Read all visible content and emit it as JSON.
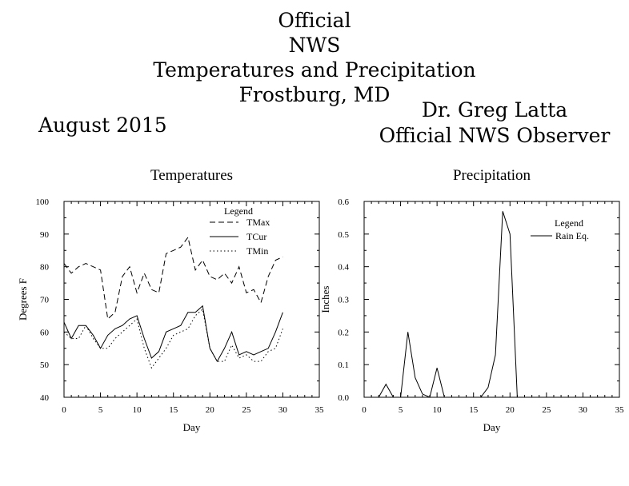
{
  "header": {
    "title_lines": [
      "Official",
      "NWS",
      "Temperatures and Precipitation",
      "Frostburg, MD"
    ],
    "date": "August 2015",
    "observer_name": "Dr. Greg Latta",
    "observer_title": "Official NWS Observer"
  },
  "chart_data": [
    {
      "type": "line",
      "title": "Temperatures",
      "xlabel": "Day",
      "ylabel": "Degrees F",
      "xlim": [
        0,
        35
      ],
      "ylim": [
        40,
        100
      ],
      "x_ticks": [
        0,
        5,
        10,
        15,
        20,
        25,
        30,
        35
      ],
      "y_ticks": [
        40,
        50,
        60,
        70,
        80,
        90,
        100
      ],
      "legend_title": "Legend",
      "legend_position": "top-right",
      "grid": false,
      "x": [
        0,
        1,
        2,
        3,
        4,
        5,
        6,
        7,
        8,
        9,
        10,
        11,
        12,
        13,
        14,
        15,
        16,
        17,
        18,
        19,
        20,
        21,
        22,
        23,
        24,
        25,
        26,
        27,
        28,
        29,
        30
      ],
      "series": [
        {
          "name": "TMax",
          "style": "dashed",
          "values": [
            81,
            78,
            80,
            81,
            80,
            79,
            64,
            66,
            77,
            80,
            72,
            78,
            73,
            72,
            84,
            85,
            86,
            89,
            79,
            82,
            77,
            76,
            78,
            75,
            80,
            72,
            73,
            69,
            77,
            82,
            83
          ]
        },
        {
          "name": "TCur",
          "style": "solid",
          "values": [
            63,
            58,
            62,
            62,
            59,
            55,
            59,
            61,
            62,
            64,
            65,
            58,
            52,
            54,
            60,
            61,
            62,
            66,
            66,
            68,
            55,
            51,
            55,
            60,
            53,
            54,
            53,
            54,
            55,
            60,
            66
          ]
        },
        {
          "name": "TMin",
          "style": "dotted",
          "values": [
            60,
            58,
            58,
            62,
            58,
            55,
            55,
            58,
            60,
            62,
            64,
            55,
            49,
            52,
            55,
            59,
            60,
            61,
            65,
            67,
            55,
            51,
            51,
            56,
            52,
            53,
            51,
            51,
            54,
            55,
            61
          ]
        }
      ]
    },
    {
      "type": "line",
      "title": "Precipitation",
      "xlabel": "Day",
      "ylabel": "Inches",
      "xlim": [
        0,
        35
      ],
      "ylim": [
        0,
        0.6
      ],
      "x_ticks": [
        0,
        5,
        10,
        15,
        20,
        25,
        30,
        35
      ],
      "y_ticks": [
        0.0,
        0.1,
        0.2,
        0.3,
        0.4,
        0.5,
        0.6
      ],
      "legend_title": "Legend",
      "legend_position": "top-right",
      "grid": false,
      "x": [
        0,
        1,
        2,
        3,
        4,
        5,
        6,
        7,
        8,
        9,
        10,
        11,
        12,
        13,
        14,
        15,
        16,
        17,
        18,
        19,
        20,
        21,
        22,
        23,
        24,
        25,
        26,
        27,
        28,
        29,
        30
      ],
      "series": [
        {
          "name": "Rain Eq.",
          "style": "solid",
          "values": [
            0,
            0,
            0,
            0.04,
            0,
            0,
            0.2,
            0.06,
            0.01,
            0,
            0.09,
            0,
            0,
            0,
            0,
            0,
            0,
            0.03,
            0.13,
            0.57,
            0.5,
            0,
            0,
            0,
            0,
            0,
            0,
            0,
            0,
            0,
            0
          ]
        }
      ]
    }
  ]
}
